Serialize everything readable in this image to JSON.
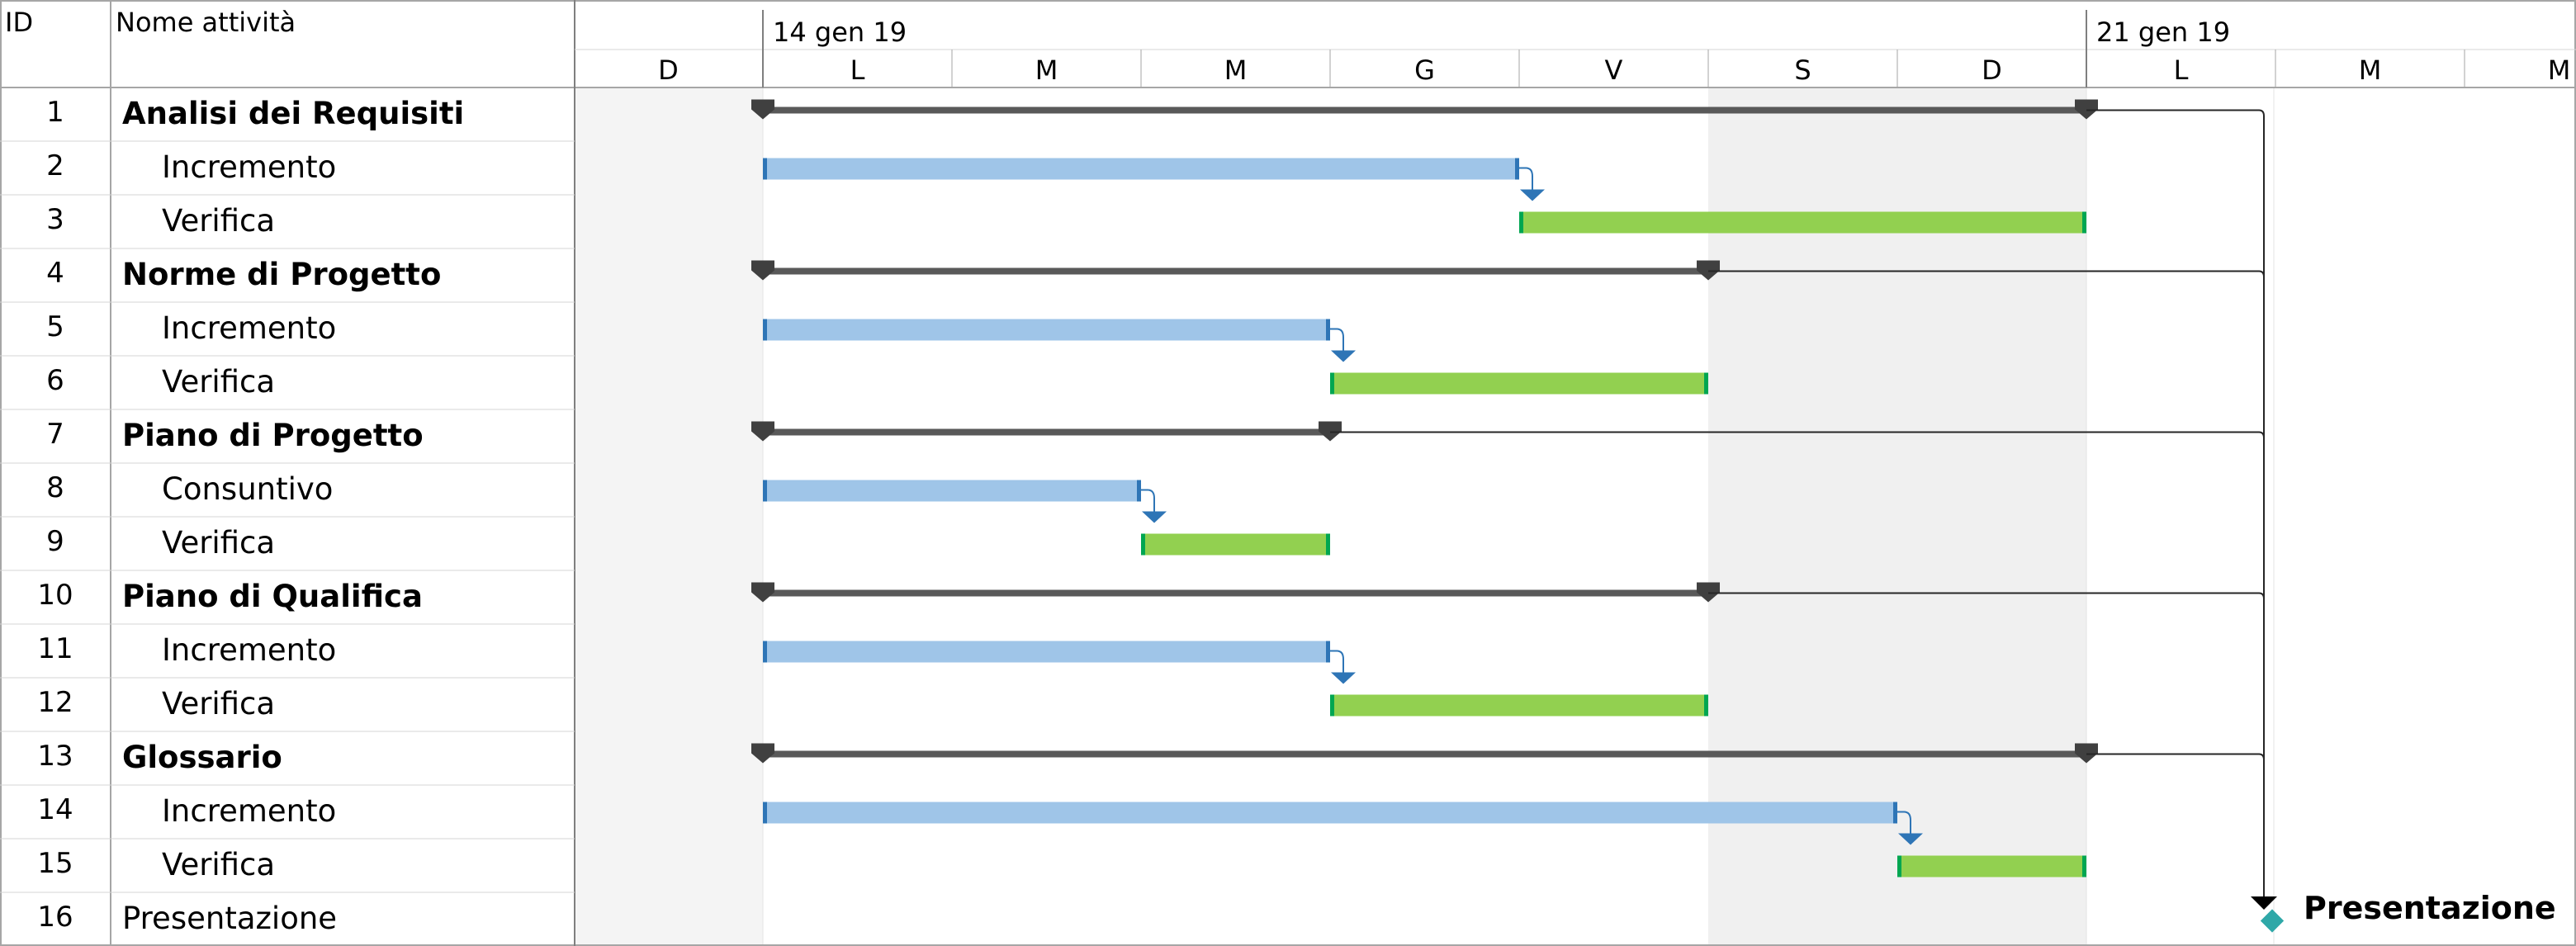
{
  "headers": {
    "id": "ID",
    "name": "Nome attività"
  },
  "timescale": {
    "weeks": [
      "14 gen 19",
      "21 gen 19"
    ],
    "days": [
      "D",
      "L",
      "M",
      "M",
      "G",
      "V",
      "S",
      "D",
      "L",
      "M",
      "M"
    ]
  },
  "tasks": [
    {
      "id": "1",
      "name": "Analisi dei Requisiti",
      "summary": true,
      "start": 1,
      "end": 8
    },
    {
      "id": "2",
      "name": "Incremento",
      "summary": false,
      "start": 1,
      "end": 5,
      "kind": "incremento"
    },
    {
      "id": "3",
      "name": "Verifica",
      "summary": false,
      "start": 5,
      "end": 8,
      "kind": "verifica"
    },
    {
      "id": "4",
      "name": "Norme di Progetto",
      "summary": true,
      "start": 1,
      "end": 6
    },
    {
      "id": "5",
      "name": "Incremento",
      "summary": false,
      "start": 1,
      "end": 4,
      "kind": "incremento"
    },
    {
      "id": "6",
      "name": "Verifica",
      "summary": false,
      "start": 4,
      "end": 6,
      "kind": "verifica"
    },
    {
      "id": "7",
      "name": "Piano di Progetto",
      "summary": true,
      "start": 1,
      "end": 4
    },
    {
      "id": "8",
      "name": "Consuntivo",
      "summary": false,
      "start": 1,
      "end": 3,
      "kind": "incremento"
    },
    {
      "id": "9",
      "name": "Verifica",
      "summary": false,
      "start": 3,
      "end": 4,
      "kind": "verifica"
    },
    {
      "id": "10",
      "name": "Piano di Qualifica",
      "summary": true,
      "start": 1,
      "end": 6
    },
    {
      "id": "11",
      "name": "Incremento",
      "summary": false,
      "start": 1,
      "end": 4,
      "kind": "incremento"
    },
    {
      "id": "12",
      "name": "Verifica",
      "summary": false,
      "start": 4,
      "end": 6,
      "kind": "verifica"
    },
    {
      "id": "13",
      "name": "Glossario",
      "summary": true,
      "start": 1,
      "end": 8
    },
    {
      "id": "14",
      "name": "Incremento",
      "summary": false,
      "start": 1,
      "end": 7,
      "kind": "incremento"
    },
    {
      "id": "15",
      "name": "Verifica",
      "summary": false,
      "start": 7,
      "end": 8,
      "kind": "verifica"
    },
    {
      "id": "16",
      "name": "Presentazione",
      "summary": false,
      "milestone": true,
      "at": 8.9
    }
  ],
  "milestone_label": "Presentazione",
  "colors": {
    "grid": "#d4d4d4",
    "border": "#a6a6a6",
    "weekend_shade": "#f0f0f0",
    "incremento_fill": "#9fc5e8",
    "incremento_end": "#2e75b6",
    "verifica_fill": "#92d050",
    "verifica_end": "#00a651",
    "summary_bar": "#595959",
    "link": "#2e75b6",
    "milestone": "#2fa8a8"
  }
}
